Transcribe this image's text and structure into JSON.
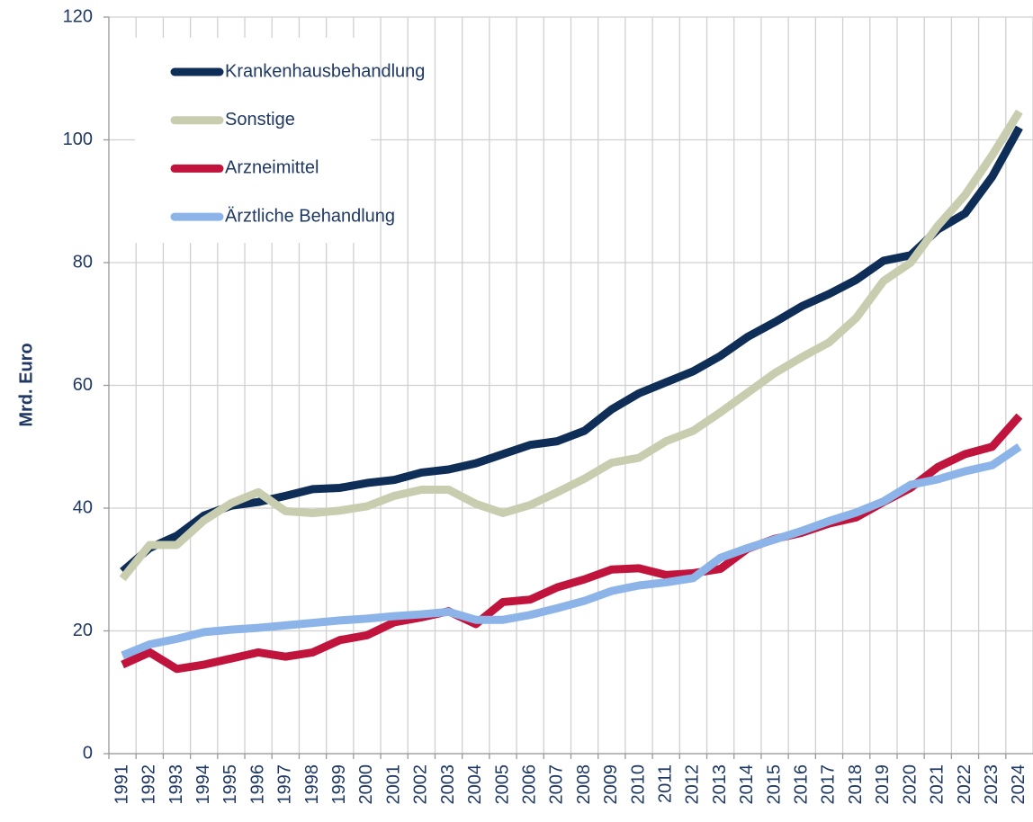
{
  "chart_data": {
    "type": "line",
    "ylabel": "Mrd. Euro",
    "categories": [
      "1991",
      "1992",
      "1993",
      "1994",
      "1995",
      "1996",
      "1997",
      "1998",
      "1999",
      "2000",
      "2001",
      "2002",
      "2003",
      "2004",
      "2005",
      "2006",
      "2007",
      "2008",
      "2009",
      "2010",
      "2011",
      "2012",
      "2013",
      "2014",
      "2015",
      "2016",
      "2017",
      "2018",
      "2019",
      "2020",
      "2021",
      "2022",
      "2023",
      "2024"
    ],
    "series": [
      {
        "name": "Krankenhausbehandlung",
        "color": "#0e2d57",
        "values": [
          29.7,
          33.5,
          35.5,
          38.8,
          40.4,
          41,
          42,
          43.1,
          43.3,
          44.1,
          44.6,
          45.8,
          46.3,
          47.3,
          48.8,
          50.3,
          50.9,
          52.6,
          56.1,
          58.7,
          60.5,
          62.3,
          64.8,
          67.9,
          70.3,
          72.9,
          74.9,
          77.2,
          80.3,
          81.2,
          85.4,
          88,
          94,
          102
        ]
      },
      {
        "name": "Sonstige",
        "color": "#c9cdb0",
        "values": [
          28.5,
          34,
          34,
          38,
          40.8,
          42.6,
          39.5,
          39.2,
          39.6,
          40.3,
          42,
          43,
          43,
          40.7,
          39.2,
          40.5,
          42.6,
          44.8,
          47.4,
          48.2,
          50.9,
          52.6,
          55.6,
          58.8,
          62,
          64.6,
          67,
          71,
          77,
          80,
          86,
          91,
          97.5,
          104.6
        ]
      },
      {
        "name": "Arzneimittel",
        "color": "#c0143c",
        "values": [
          14.5,
          16.5,
          13.8,
          14.5,
          15.5,
          16.5,
          15.8,
          16.5,
          18.5,
          19.3,
          21.4,
          22.2,
          23.2,
          21.1,
          24.7,
          25.1,
          27.1,
          28.4,
          30,
          30.2,
          29.1,
          29.4,
          30.1,
          33.4,
          35,
          36,
          37.5,
          38.5,
          41,
          43.3,
          46.7,
          48.8,
          50,
          55
        ]
      },
      {
        "name": "Ärztliche Behandlung",
        "color": "#8db4e8",
        "values": [
          16,
          17.8,
          18.7,
          19.8,
          20.2,
          20.5,
          20.9,
          21.3,
          21.7,
          22,
          22.4,
          22.7,
          23.1,
          21.8,
          21.8,
          22.6,
          23.7,
          24.9,
          26.5,
          27.4,
          27.9,
          28.6,
          31.9,
          33.5,
          34.9,
          36.3,
          37.9,
          39.3,
          41.1,
          43.8,
          44.7,
          46,
          47,
          50
        ]
      }
    ],
    "ylim": [
      0,
      120
    ],
    "yticks": [
      0,
      20,
      40,
      60,
      80,
      100,
      120
    ],
    "grid": true,
    "legend": "upper left"
  }
}
